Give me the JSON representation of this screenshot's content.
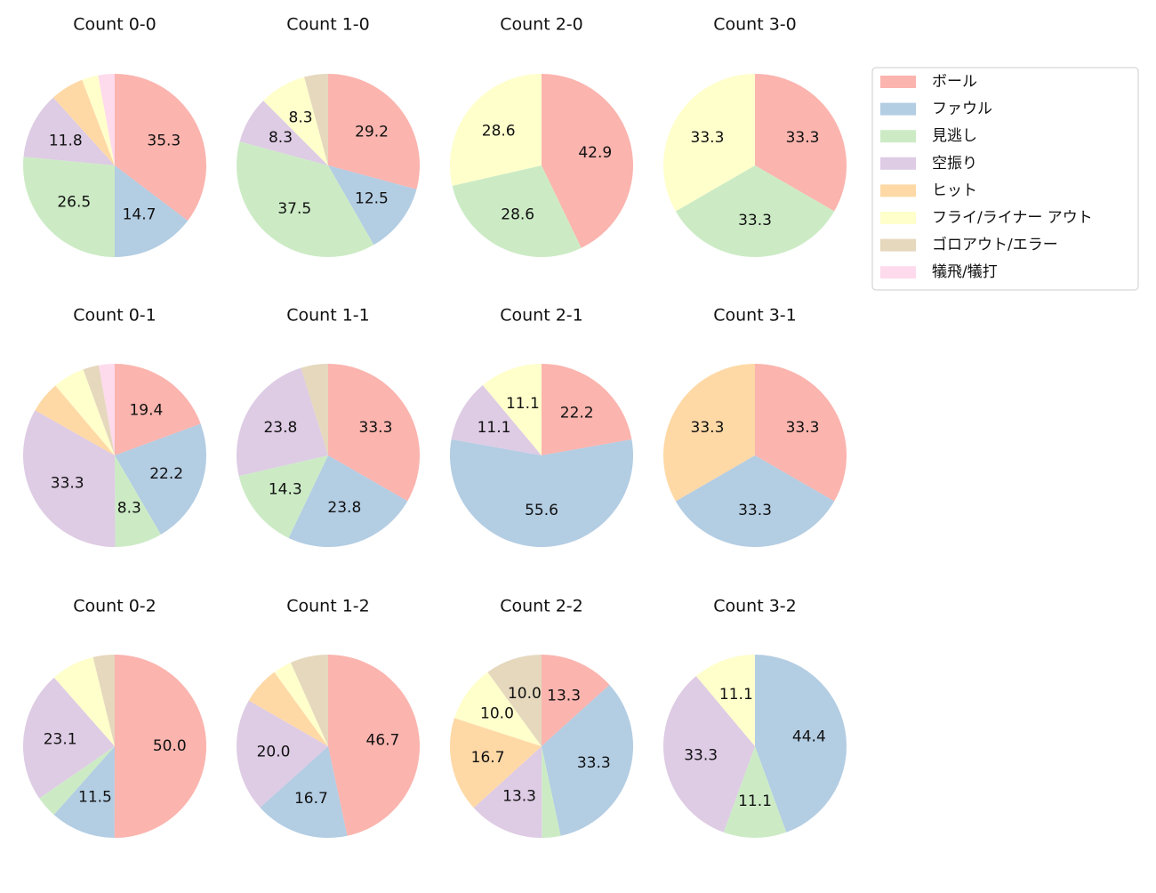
{
  "legend": {
    "categories": [
      "ボール",
      "ファウル",
      "見逃し",
      "空振り",
      "ヒット",
      "フライ/ライナー アウト",
      "ゴロアウト/エラー",
      "犠飛/犠打"
    ],
    "colors": [
      "#fbb4ae",
      "#b3cde3",
      "#ccebc5",
      "#decbe4",
      "#fed9a6",
      "#ffffcc",
      "#e5d8bd",
      "#fddaec"
    ]
  },
  "chart_data": [
    {
      "type": "pie",
      "title": "Count 0-0",
      "values": [
        35.3,
        14.7,
        26.5,
        11.8,
        5.9,
        2.9,
        0,
        2.9
      ],
      "value_labels": [
        "35.3",
        "14.7",
        "26.5",
        "11.8",
        null,
        null,
        null,
        null
      ]
    },
    {
      "type": "pie",
      "title": "Count 1-0",
      "values": [
        29.2,
        12.5,
        37.5,
        8.3,
        0,
        8.3,
        4.2,
        0
      ],
      "value_labels": [
        "29.2",
        "12.5",
        "37.5",
        "8.3",
        null,
        "8.3",
        null,
        null
      ]
    },
    {
      "type": "pie",
      "title": "Count 2-0",
      "values": [
        42.9,
        0,
        28.6,
        0,
        0,
        28.6,
        0,
        0
      ],
      "value_labels": [
        "42.9",
        null,
        "28.6",
        null,
        null,
        "28.6",
        null,
        null
      ]
    },
    {
      "type": "pie",
      "title": "Count 3-0",
      "values": [
        33.3,
        0,
        33.3,
        0,
        0,
        33.3,
        0,
        0
      ],
      "value_labels": [
        "33.3",
        null,
        "33.3",
        null,
        null,
        "33.3",
        null,
        null
      ]
    },
    {
      "type": "pie",
      "title": "Count 0-1",
      "values": [
        19.4,
        22.2,
        8.3,
        33.3,
        5.6,
        5.6,
        2.8,
        2.8
      ],
      "value_labels": [
        "19.4",
        "22.2",
        "8.3",
        "33.3",
        null,
        null,
        null,
        null
      ]
    },
    {
      "type": "pie",
      "title": "Count 1-1",
      "values": [
        33.3,
        23.8,
        14.3,
        23.8,
        0,
        0,
        4.8,
        0
      ],
      "value_labels": [
        "33.3",
        "23.8",
        "14.3",
        "23.8",
        null,
        null,
        null,
        null
      ]
    },
    {
      "type": "pie",
      "title": "Count 2-1",
      "values": [
        22.2,
        55.6,
        0,
        11.1,
        0,
        11.1,
        0,
        0
      ],
      "value_labels": [
        "22.2",
        "55.6",
        null,
        "11.1",
        null,
        "11.1",
        null,
        null
      ]
    },
    {
      "type": "pie",
      "title": "Count 3-1",
      "values": [
        33.3,
        33.3,
        0,
        0,
        33.3,
        0,
        0,
        0
      ],
      "value_labels": [
        "33.3",
        "33.3",
        null,
        null,
        "33.3",
        null,
        null,
        null
      ]
    },
    {
      "type": "pie",
      "title": "Count 0-2",
      "values": [
        50,
        11.5,
        3.8,
        23.1,
        0,
        7.7,
        3.8,
        0
      ],
      "value_labels": [
        "50.0",
        "11.5",
        null,
        "23.1",
        null,
        null,
        null,
        null
      ]
    },
    {
      "type": "pie",
      "title": "Count 1-2",
      "values": [
        46.7,
        16.7,
        0,
        20,
        6.7,
        3.3,
        6.7,
        0
      ],
      "value_labels": [
        "46.7",
        "16.7",
        null,
        "20.0",
        null,
        null,
        null,
        null
      ]
    },
    {
      "type": "pie",
      "title": "Count 2-2",
      "values": [
        13.3,
        33.3,
        3.3,
        13.3,
        16.7,
        10,
        10,
        0
      ],
      "value_labels": [
        "13.3",
        "33.3",
        null,
        "13.3",
        "16.7",
        "10.0",
        "10.0",
        null
      ]
    },
    {
      "type": "pie",
      "title": "Count 3-2",
      "values": [
        0,
        44.4,
        11.1,
        33.3,
        0,
        11.1,
        0,
        0
      ],
      "value_labels": [
        null,
        "44.4",
        "11.1",
        "33.3",
        null,
        "11.1",
        null,
        null
      ]
    }
  ]
}
